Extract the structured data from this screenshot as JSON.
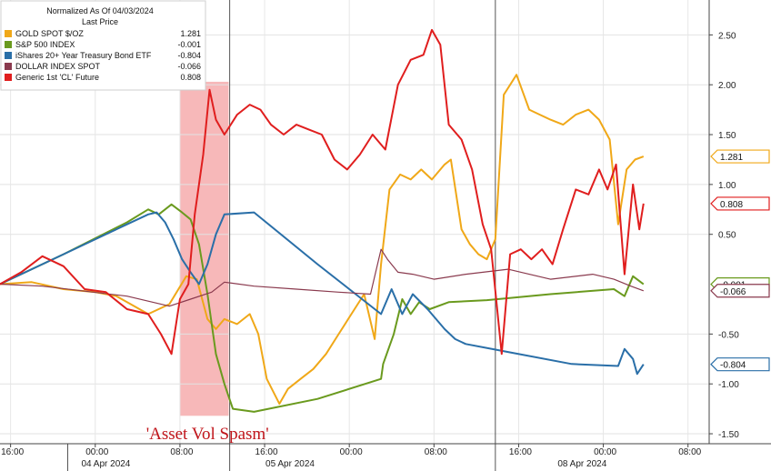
{
  "chart_data": {
    "type": "line",
    "legend": {
      "header_line1": "Normalized As Of 04/03/2024",
      "header_line2": "Last Price",
      "placement": "top-left"
    },
    "grid": true,
    "ylim": [
      -1.6,
      2.85
    ],
    "y_ticks": [
      "2.50",
      "2.00",
      "1.50",
      "1.00",
      "0.50",
      "-0.50",
      "-1.00",
      "-1.50"
    ],
    "x_ticks": [
      "16:00",
      "00:00",
      "08:00",
      "16:00",
      "00:00",
      "08:00",
      "16:00",
      "00:00",
      "08:00"
    ],
    "x_dates": [
      "04 Apr 2024",
      "05 Apr 2024",
      "08 Apr 2024"
    ],
    "annotation": {
      "text": "'Asset Vol Spasm'",
      "band_start": 8.5,
      "band_end": 10.8
    },
    "series": [
      {
        "name": "GOLD SPOT $/OZ",
        "last": "1.281",
        "color": "#f0a818",
        "points": [
          [
            0,
            0
          ],
          [
            1.5,
            0.02
          ],
          [
            3,
            -0.05
          ],
          [
            4.5,
            -0.08
          ],
          [
            5.5,
            -0.12
          ],
          [
            6,
            -0.18
          ],
          [
            7,
            -0.3
          ],
          [
            8,
            -0.2
          ],
          [
            8.8,
            0.08
          ],
          [
            9.3,
            0.05
          ],
          [
            9.8,
            -0.35
          ],
          [
            10.2,
            -0.45
          ],
          [
            10.6,
            -0.35
          ],
          [
            11.2,
            -0.4
          ],
          [
            11.8,
            -0.3
          ],
          [
            12.2,
            -0.5
          ],
          [
            12.6,
            -0.95
          ],
          [
            13.2,
            -1.2
          ],
          [
            13.6,
            -1.05
          ],
          [
            14.2,
            -0.95
          ],
          [
            14.8,
            -0.85
          ],
          [
            15.4,
            -0.7
          ],
          [
            16,
            -0.5
          ],
          [
            16.6,
            -0.3
          ],
          [
            17.2,
            -0.1
          ],
          [
            17.7,
            -0.55
          ],
          [
            18,
            0.2
          ],
          [
            18.4,
            0.95
          ],
          [
            18.9,
            1.1
          ],
          [
            19.4,
            1.05
          ],
          [
            19.9,
            1.15
          ],
          [
            20.4,
            1.05
          ],
          [
            21,
            1.2
          ],
          [
            21.3,
            1.25
          ],
          [
            21.8,
            0.55
          ],
          [
            22.2,
            0.4
          ],
          [
            22.6,
            0.3
          ],
          [
            23,
            0.25
          ],
          [
            23.4,
            0.45
          ],
          [
            23.8,
            1.9
          ],
          [
            24.4,
            2.1
          ],
          [
            25,
            1.75
          ],
          [
            25.5,
            1.7
          ],
          [
            26,
            1.65
          ],
          [
            26.6,
            1.6
          ],
          [
            27.2,
            1.7
          ],
          [
            27.8,
            1.75
          ],
          [
            28.3,
            1.65
          ],
          [
            28.8,
            1.45
          ],
          [
            29.2,
            0.6
          ],
          [
            29.6,
            1.15
          ],
          [
            30,
            1.25
          ],
          [
            30.4,
            1.281
          ]
        ]
      },
      {
        "name": "S&P 500 INDEX",
        "last": "-0.001",
        "color": "#6a9a1e",
        "points": [
          [
            0,
            0
          ],
          [
            3,
            0.3
          ],
          [
            6,
            0.62
          ],
          [
            7,
            0.75
          ],
          [
            7.5,
            0.7
          ],
          [
            8.1,
            0.8
          ],
          [
            8.6,
            0.72
          ],
          [
            9,
            0.65
          ],
          [
            9.4,
            0.4
          ],
          [
            9.8,
            -0.1
          ],
          [
            10.2,
            -0.7
          ],
          [
            10.6,
            -1.0
          ],
          [
            11,
            -1.25
          ],
          [
            12,
            -1.28
          ],
          [
            15,
            -1.15
          ],
          [
            18,
            -0.95
          ],
          [
            18.1,
            -0.8
          ],
          [
            18.6,
            -0.5
          ],
          [
            19,
            -0.15
          ],
          [
            19.4,
            -0.3
          ],
          [
            19.8,
            -0.18
          ],
          [
            20.3,
            -0.25
          ],
          [
            21.2,
            -0.18
          ],
          [
            23,
            -0.16
          ],
          [
            26,
            -0.1
          ],
          [
            29,
            -0.05
          ],
          [
            29.5,
            -0.12
          ],
          [
            29.9,
            0.08
          ],
          [
            30.4,
            -0.001
          ]
        ]
      },
      {
        "name": "iShares 20+ Year Treasury Bond ETF",
        "last": "-0.804",
        "color": "#2a6fa8",
        "points": [
          [
            0,
            0
          ],
          [
            3,
            0.3
          ],
          [
            6,
            0.6
          ],
          [
            7,
            0.7
          ],
          [
            7.4,
            0.72
          ],
          [
            7.8,
            0.62
          ],
          [
            8.2,
            0.45
          ],
          [
            8.6,
            0.25
          ],
          [
            9,
            0.12
          ],
          [
            9.4,
            0.0
          ],
          [
            9.8,
            0.2
          ],
          [
            10.2,
            0.5
          ],
          [
            10.6,
            0.7
          ],
          [
            12,
            0.72
          ],
          [
            15,
            0.2
          ],
          [
            18,
            -0.3
          ],
          [
            18.5,
            -0.05
          ],
          [
            19,
            -0.3
          ],
          [
            19.5,
            -0.1
          ],
          [
            20.2,
            -0.25
          ],
          [
            21,
            -0.45
          ],
          [
            21.5,
            -0.55
          ],
          [
            22,
            -0.6
          ],
          [
            24,
            -0.68
          ],
          [
            27,
            -0.8
          ],
          [
            29.2,
            -0.82
          ],
          [
            29.5,
            -0.65
          ],
          [
            29.9,
            -0.75
          ],
          [
            30.1,
            -0.9
          ],
          [
            30.4,
            -0.804
          ]
        ]
      },
      {
        "name": "DOLLAR INDEX SPOT",
        "last": "-0.066",
        "color": "#8a3a4e",
        "points": [
          [
            0,
            0
          ],
          [
            2,
            -0.02
          ],
          [
            4,
            -0.07
          ],
          [
            6,
            -0.12
          ],
          [
            8,
            -0.22
          ],
          [
            9,
            -0.15
          ],
          [
            10,
            -0.08
          ],
          [
            10.6,
            0.02
          ],
          [
            12,
            -0.02
          ],
          [
            14,
            -0.05
          ],
          [
            16,
            -0.08
          ],
          [
            17.5,
            -0.1
          ],
          [
            18,
            0.35
          ],
          [
            18.3,
            0.25
          ],
          [
            18.8,
            0.12
          ],
          [
            19.5,
            0.1
          ],
          [
            20.5,
            0.05
          ],
          [
            22,
            0.1
          ],
          [
            24,
            0.15
          ],
          [
            26,
            0.05
          ],
          [
            28,
            0.1
          ],
          [
            29,
            0.05
          ],
          [
            29.8,
            -0.02
          ],
          [
            30.4,
            -0.066
          ]
        ]
      },
      {
        "name": "Generic 1st 'CL' Future",
        "last": "0.808",
        "color": "#e01e1e",
        "points": [
          [
            0,
            0
          ],
          [
            1,
            0.12
          ],
          [
            2,
            0.28
          ],
          [
            3,
            0.18
          ],
          [
            4,
            -0.05
          ],
          [
            5,
            -0.08
          ],
          [
            6,
            -0.25
          ],
          [
            7,
            -0.3
          ],
          [
            7.6,
            -0.5
          ],
          [
            8.1,
            -0.7
          ],
          [
            8.5,
            -0.15
          ],
          [
            8.9,
            0.0
          ],
          [
            9.2,
            0.7
          ],
          [
            9.6,
            1.3
          ],
          [
            9.9,
            1.95
          ],
          [
            10.2,
            1.65
          ],
          [
            10.6,
            1.5
          ],
          [
            11.2,
            1.7
          ],
          [
            11.8,
            1.8
          ],
          [
            12.3,
            1.75
          ],
          [
            12.8,
            1.6
          ],
          [
            13.4,
            1.5
          ],
          [
            14,
            1.6
          ],
          [
            14.6,
            1.55
          ],
          [
            15.2,
            1.5
          ],
          [
            15.8,
            1.25
          ],
          [
            16.4,
            1.15
          ],
          [
            17,
            1.3
          ],
          [
            17.6,
            1.5
          ],
          [
            18.2,
            1.35
          ],
          [
            18.8,
            2.0
          ],
          [
            19.4,
            2.25
          ],
          [
            20,
            2.3
          ],
          [
            20.4,
            2.55
          ],
          [
            20.8,
            2.4
          ],
          [
            21.2,
            1.6
          ],
          [
            21.8,
            1.45
          ],
          [
            22.3,
            1.15
          ],
          [
            22.8,
            0.6
          ],
          [
            23.2,
            0.35
          ],
          [
            23.7,
            -0.7
          ],
          [
            24.1,
            0.3
          ],
          [
            24.6,
            0.35
          ],
          [
            25.1,
            0.25
          ],
          [
            25.6,
            0.35
          ],
          [
            26.1,
            0.2
          ],
          [
            26.6,
            0.55
          ],
          [
            27.2,
            0.95
          ],
          [
            27.8,
            0.9
          ],
          [
            28.3,
            1.15
          ],
          [
            28.7,
            0.95
          ],
          [
            29.1,
            1.2
          ],
          [
            29.5,
            0.1
          ],
          [
            29.9,
            1.0
          ],
          [
            30.2,
            0.55
          ],
          [
            30.4,
            0.808
          ]
        ]
      }
    ]
  }
}
